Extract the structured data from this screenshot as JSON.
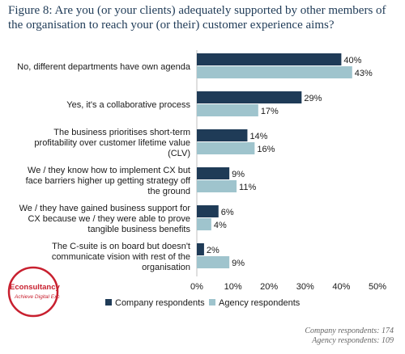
{
  "title": "Figure 8: Are you (or your clients) adequately supported by other members of the organisation to reach your (or their) customer experience aims?",
  "colors": {
    "company": "#1f3b57",
    "agency": "#9fc4cd",
    "logo_red": "#c8202f"
  },
  "logo": {
    "name": "Econsultancy",
    "tagline": "Achieve Digital Excellence"
  },
  "chart_data": {
    "type": "bar",
    "orientation": "horizontal",
    "categories": [
      [
        "No, different departments have own agenda"
      ],
      [
        "Yes, it's a collaborative process"
      ],
      [
        "The business prioritises short-term",
        "profitability over customer lifetime value",
        "(CLV)"
      ],
      [
        "We / they know how to implement CX but",
        "face barriers higher up getting strategy off",
        "the ground"
      ],
      [
        "We / they have gained business support for",
        "CX because we / they were able to prove",
        "tangible business benefits"
      ],
      [
        "The C-suite is on board but doesn't",
        "communicate vision with rest of the",
        "organisation"
      ]
    ],
    "series": [
      {
        "name": "Company respondents",
        "values": [
          40,
          29,
          14,
          9,
          6,
          2
        ]
      },
      {
        "name": "Agency respondents",
        "values": [
          43,
          17,
          16,
          11,
          4,
          9
        ]
      }
    ],
    "xlim": [
      0,
      50
    ],
    "ticks": [
      "0%",
      "10%",
      "20%",
      "30%",
      "40%",
      "50%"
    ],
    "value_suffix": "%",
    "grid": false,
    "legend_position": "bottom"
  },
  "footnotes": [
    "Company respondents: 174",
    "Agency respondents: 109"
  ]
}
